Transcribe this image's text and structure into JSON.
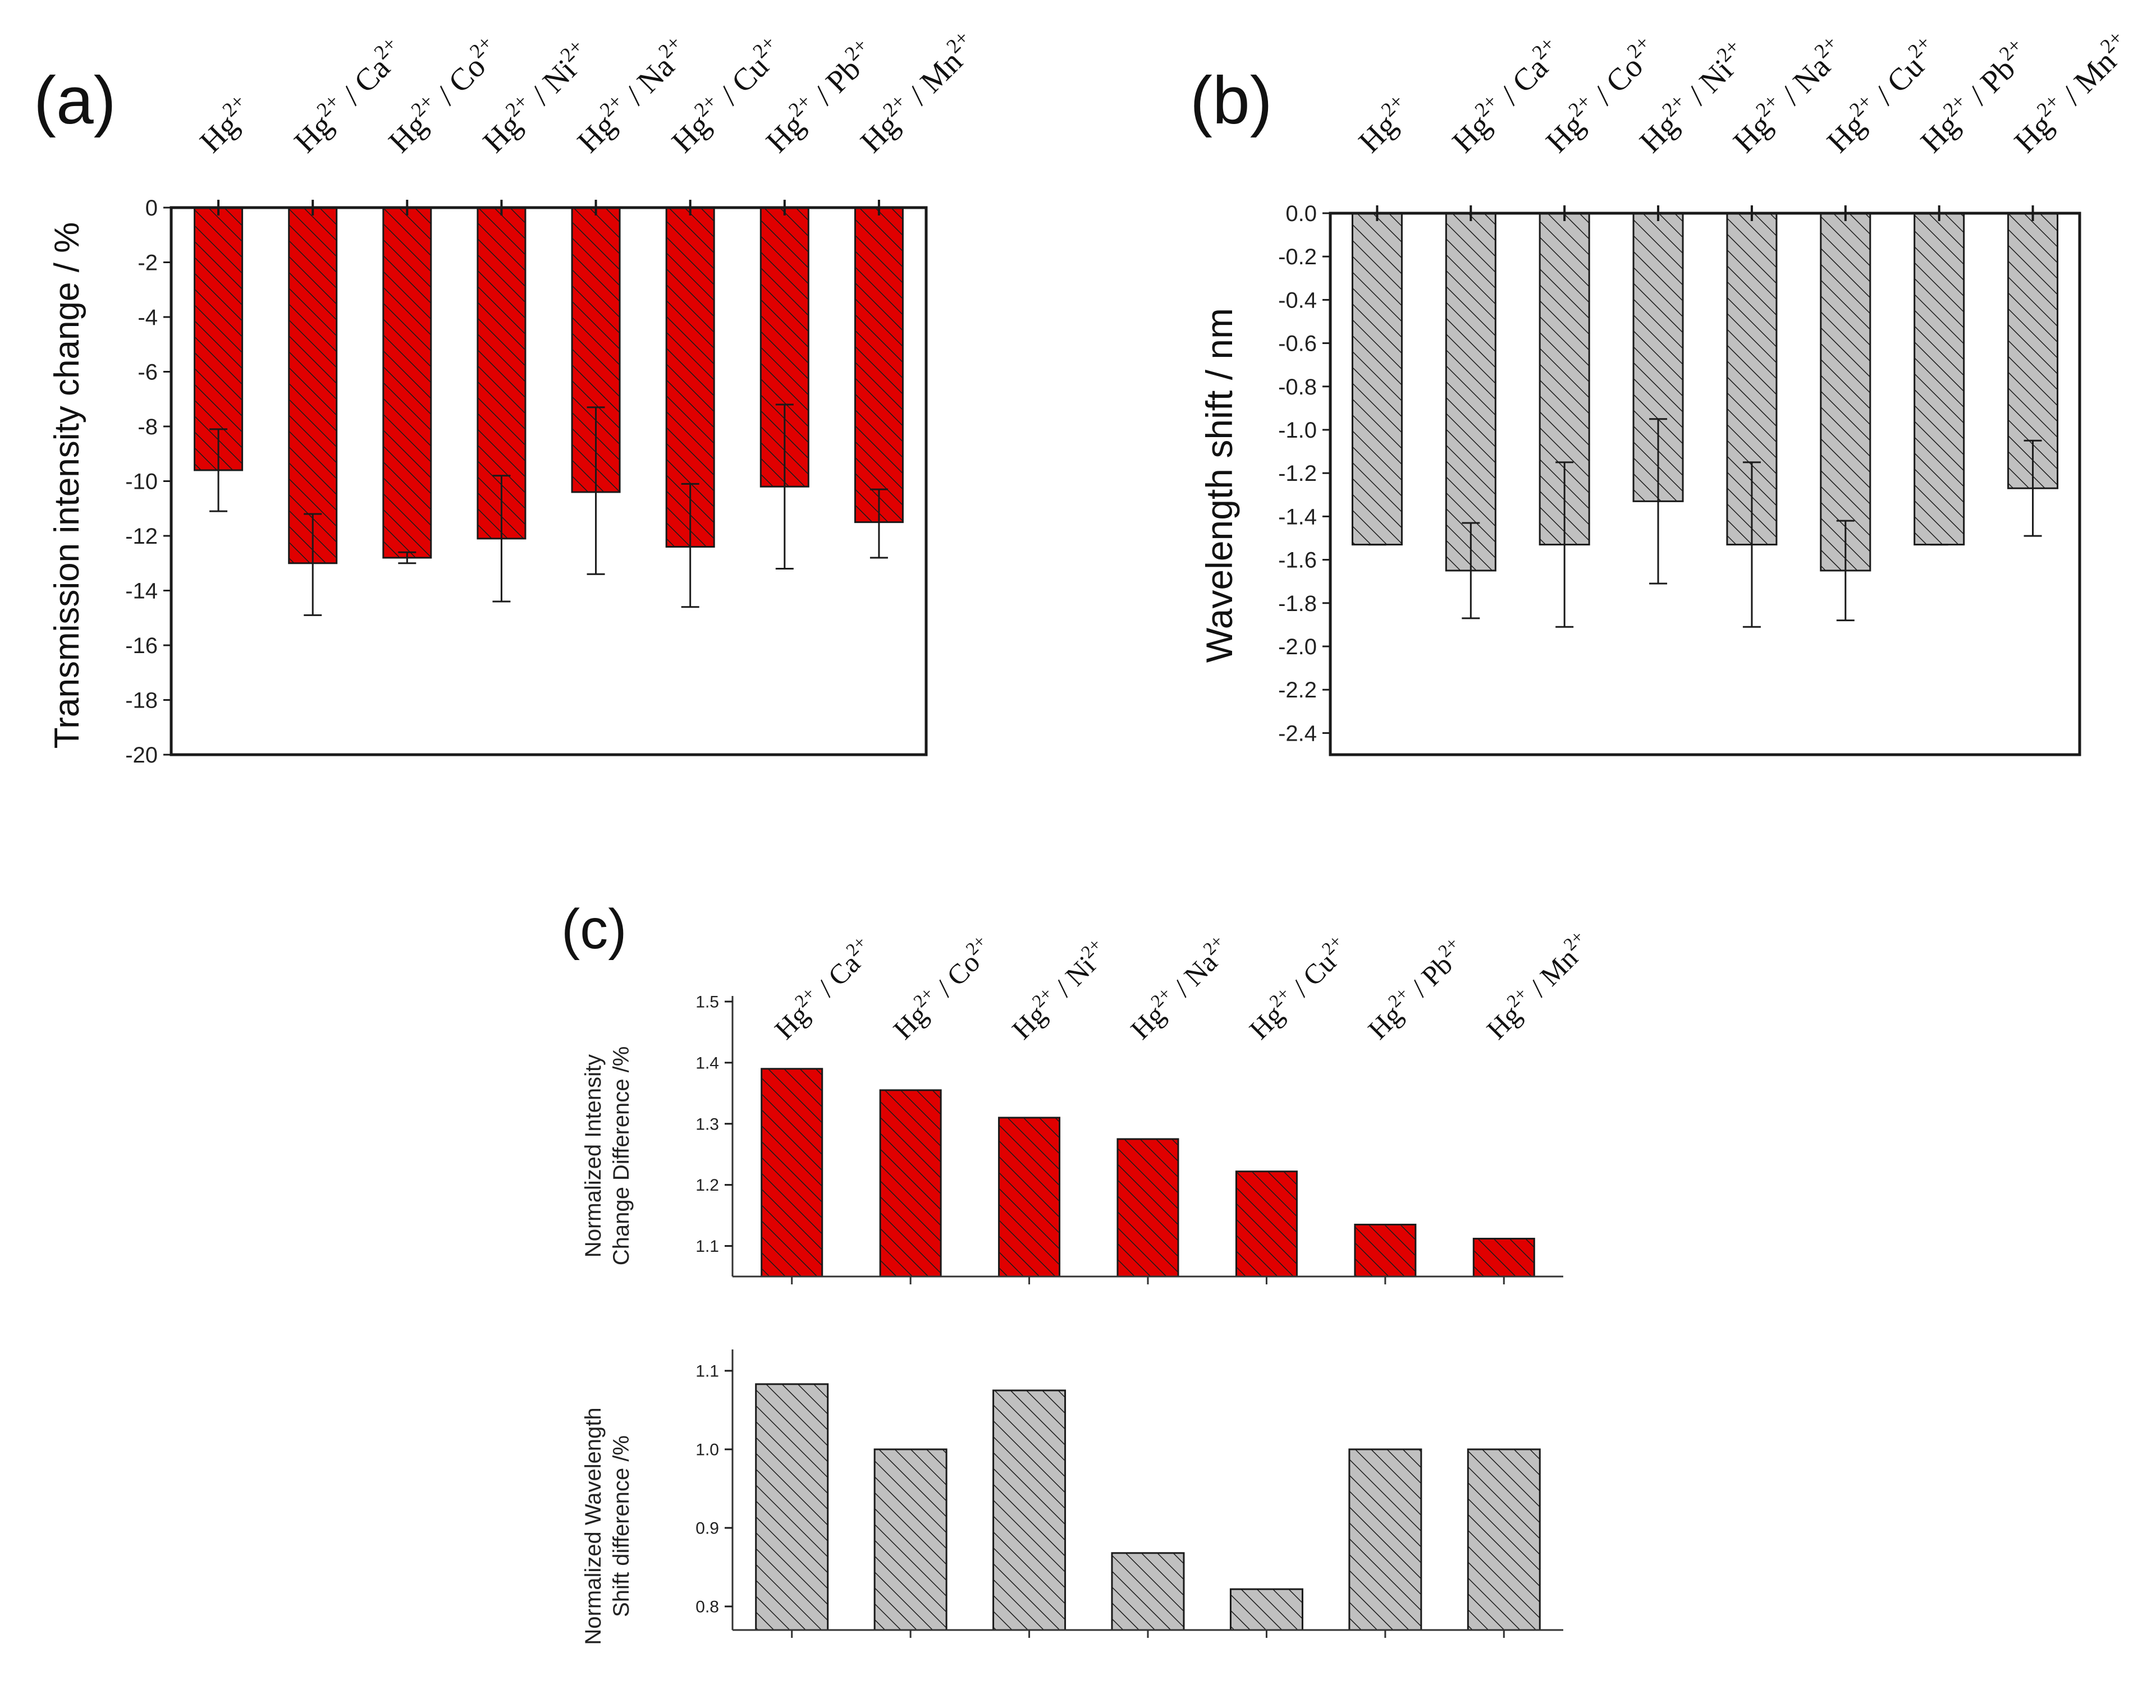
{
  "colors": {
    "red_fill": "#e00000",
    "gray_fill": "#c0c0c0",
    "hatch_line": "#1a1a1a",
    "axis": "#1a1a1a"
  },
  "chart_data": [
    {
      "id": "a",
      "panel_label": "(a)",
      "type": "bar",
      "ylabel": "Transmission intensity change / %",
      "ylim": [
        -20,
        0
      ],
      "yticks": [
        0,
        -2,
        -4,
        -6,
        -8,
        -10,
        -12,
        -14,
        -16,
        -18,
        -20
      ],
      "ytick_labels": [
        "0",
        "-2",
        "-4",
        "-6",
        "-8",
        "-10",
        "-12",
        "-14",
        "-16",
        "-18",
        "-20"
      ],
      "color": "red",
      "categories": [
        {
          "main": "Hg",
          "sup": "2+"
        },
        {
          "main": "Hg",
          "sup": "2+",
          "sep": " / ",
          "ion": "Ca",
          "ion_sup": "2+"
        },
        {
          "main": "Hg",
          "sup": "2+",
          "sep": " / ",
          "ion": "Co",
          "ion_sup": "2+"
        },
        {
          "main": "Hg",
          "sup": "2+",
          "sep": " / ",
          "ion": "Ni",
          "ion_sup": "2+"
        },
        {
          "main": "Hg",
          "sup": "2+",
          "sep": " / ",
          "ion": "Na",
          "ion_sup": "2+"
        },
        {
          "main": "Hg",
          "sup": "2+",
          "sep": " / ",
          "ion": "Cu",
          "ion_sup": "2+"
        },
        {
          "main": "Hg",
          "sup": "2+",
          "sep": " / ",
          "ion": "Pb",
          "ion_sup": "2+"
        },
        {
          "main": "Hg",
          "sup": "2+",
          "sep": " / ",
          "ion": "Mn",
          "ion_sup": "2+"
        }
      ],
      "values": [
        -9.6,
        -13.0,
        -12.8,
        -12.1,
        -10.4,
        -12.4,
        -10.2,
        -11.5
      ],
      "error_low": [
        -11.1,
        -14.9,
        -13.0,
        -14.4,
        -13.4,
        -14.6,
        -13.2,
        -12.8
      ],
      "error_high": [
        -8.1,
        -11.2,
        -12.6,
        -9.8,
        -7.3,
        -10.1,
        -7.2,
        -10.3
      ]
    },
    {
      "id": "b",
      "panel_label": "(b)",
      "type": "bar",
      "ylabel": "Wavelength  shift / nm",
      "ylim": [
        -2.5,
        0.0
      ],
      "yticks": [
        0.0,
        -0.2,
        -0.4,
        -0.6,
        -0.8,
        -1.0,
        -1.2,
        -1.4,
        -1.6,
        -1.8,
        -2.0,
        -2.2,
        -2.4
      ],
      "ytick_labels": [
        "0.0",
        "-0.2",
        "-0.4",
        "-0.6",
        "-0.8",
        "-1.0",
        "-1.2",
        "-1.4",
        "-1.6",
        "-1.8",
        "-2.0",
        "-2.2",
        "-2.4"
      ],
      "color": "gray",
      "categories": [
        {
          "main": "Hg",
          "sup": "2+"
        },
        {
          "main": "Hg",
          "sup": "2+",
          "sep": " / ",
          "ion": "Ca",
          "ion_sup": "2+"
        },
        {
          "main": "Hg",
          "sup": "2+",
          "sep": " / ",
          "ion": "Co",
          "ion_sup": "2+"
        },
        {
          "main": "Hg",
          "sup": "2+",
          "sep": " / ",
          "ion": "Ni",
          "ion_sup": "2+"
        },
        {
          "main": "Hg",
          "sup": "2+",
          "sep": " / ",
          "ion": "Na",
          "ion_sup": "2+"
        },
        {
          "main": "Hg",
          "sup": "2+",
          "sep": " / ",
          "ion": "Cu",
          "ion_sup": "2+"
        },
        {
          "main": "Hg",
          "sup": "2+",
          "sep": " / ",
          "ion": "Pb",
          "ion_sup": "2+"
        },
        {
          "main": "Hg",
          "sup": "2+",
          "sep": " / ",
          "ion": "Mn",
          "ion_sup": "2+"
        }
      ],
      "values": [
        -1.53,
        -1.65,
        -1.53,
        -1.33,
        -1.53,
        -1.65,
        -1.53,
        -1.27
      ],
      "error_low": [
        -1.53,
        -1.87,
        -1.91,
        -1.71,
        -1.91,
        -1.88,
        -1.53,
        -1.49
      ],
      "error_high": [
        -1.53,
        -1.43,
        -1.15,
        -0.95,
        -1.15,
        -1.42,
        -1.53,
        -1.05
      ]
    },
    {
      "id": "c_top",
      "panel_label": "(c)",
      "type": "bar",
      "ylabel": [
        "Normalized Intensity",
        "Change Difference /%"
      ],
      "ylim": [
        1.05,
        1.5
      ],
      "yticks": [
        1.1,
        1.2,
        1.3,
        1.4,
        1.5
      ],
      "ytick_labels": [
        "1.1",
        "1.2",
        "1.3",
        "1.4",
        "1.5"
      ],
      "color": "red",
      "categories": [
        {
          "main": "Hg",
          "sup": "2+",
          "sep": " / ",
          "ion": "Ca",
          "ion_sup": "2+"
        },
        {
          "main": "Hg",
          "sup": "2+",
          "sep": " / ",
          "ion": "Co",
          "ion_sup": "2+"
        },
        {
          "main": "Hg",
          "sup": "2+",
          "sep": " / ",
          "ion": "Ni",
          "ion_sup": "2+"
        },
        {
          "main": "Hg",
          "sup": "2+",
          "sep": " / ",
          "ion": "Na",
          "ion_sup": "2+"
        },
        {
          "main": "Hg",
          "sup": "2+",
          "sep": " / ",
          "ion": "Cu",
          "ion_sup": "2+"
        },
        {
          "main": "Hg",
          "sup": "2+",
          "sep": " / ",
          "ion": "Pb",
          "ion_sup": "2+"
        },
        {
          "main": "Hg",
          "sup": "2+",
          "sep": " / ",
          "ion": "Mn",
          "ion_sup": "2+"
        }
      ],
      "values": [
        1.39,
        1.355,
        1.31,
        1.275,
        1.222,
        1.135,
        1.112
      ]
    },
    {
      "id": "c_bottom",
      "type": "bar",
      "ylabel": [
        "Normalized Wavelength",
        "Shift difference /%"
      ],
      "ylim": [
        0.77,
        1.12
      ],
      "yticks": [
        0.8,
        0.9,
        1.0,
        1.1
      ],
      "ytick_labels": [
        "0.8",
        "0.9",
        "1.0",
        "1.1"
      ],
      "color": "gray",
      "values": [
        1.083,
        1.0,
        1.075,
        0.868,
        0.822,
        1.0,
        1.0
      ]
    }
  ]
}
